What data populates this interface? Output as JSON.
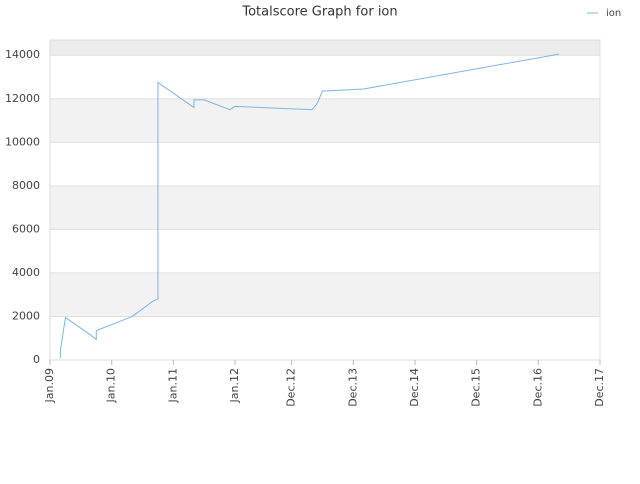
{
  "chart_data": {
    "type": "line",
    "title": "Totalscore Graph for ion",
    "x": [
      "2009-03",
      "2009-03",
      "2009-04",
      "2009-08",
      "2009-10",
      "2009-10",
      "2010-05",
      "2010-09",
      "2010-10",
      "2010-10",
      "2010-10",
      "2011-05",
      "2011-05",
      "2011-07",
      "2011-12",
      "2012-01",
      "2012-11",
      "2013-04",
      "2013-05",
      "2013-06",
      "2014-02",
      "2017-04"
    ],
    "series": [
      {
        "name": "ion",
        "color": "#7cb5ec",
        "values": [
          100,
          400,
          1950,
          1300,
          950,
          1350,
          2000,
          2700,
          2800,
          7000,
          12750,
          11600,
          11950,
          11950,
          11500,
          11650,
          11550,
          11500,
          11800,
          12350,
          12450,
          14050
        ]
      }
    ],
    "xlim": [
      "2009-01",
      "2017-12"
    ],
    "xticks": [
      {
        "value": "2009-01",
        "label": "Jan.09"
      },
      {
        "value": "2010-01",
        "label": "Jan.10"
      },
      {
        "value": "2011-01",
        "label": "Jan.11"
      },
      {
        "value": "2012-01",
        "label": "Jan.12"
      },
      {
        "value": "2012-12",
        "label": "Dec.12"
      },
      {
        "value": "2013-12",
        "label": "Dec.13"
      },
      {
        "value": "2014-12",
        "label": "Dec.14"
      },
      {
        "value": "2015-12",
        "label": "Dec.15"
      },
      {
        "value": "2016-12",
        "label": "Dec.16"
      },
      {
        "value": "2017-12",
        "label": "Dec.17"
      }
    ],
    "ylim": [
      0,
      14700
    ],
    "yticks": [
      0,
      2000,
      4000,
      6000,
      8000,
      10000,
      12000,
      14000
    ],
    "grid": true,
    "legend": "top-right"
  }
}
